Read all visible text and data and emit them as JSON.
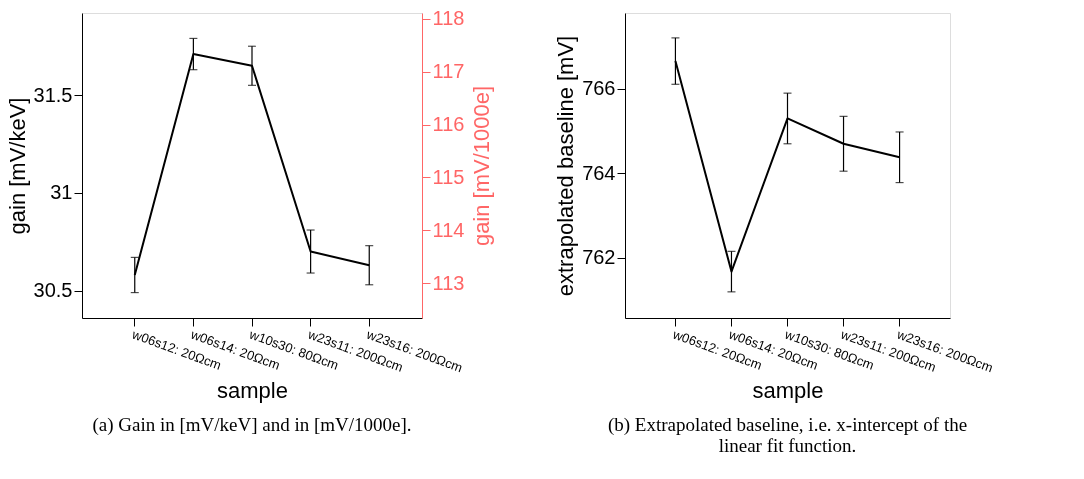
{
  "chart_data": [
    {
      "type": "line",
      "xlabel": "sample",
      "ylabel": "gain [mV/keV]",
      "y2label": "gain [mV/1000e]",
      "categories": [
        "w06s12: 20Ωcm",
        "w06s14: 20Ωcm",
        "w10s30: 80Ωcm",
        "w23s11: 200Ωcm",
        "w23s16: 200Ωcm"
      ],
      "series": [
        {
          "color": "#000000",
          "values": [
            30.58,
            31.71,
            31.65,
            30.7,
            30.63
          ],
          "errors": [
            0.09,
            0.08,
            0.1,
            0.11,
            0.1
          ]
        }
      ],
      "ylim": [
        30.36,
        31.92
      ],
      "yticks": [
        30.5,
        31,
        31.5
      ],
      "y2lim": [
        112.34,
        118.11
      ],
      "y2ticks": [
        113,
        114,
        115,
        116,
        117,
        118
      ],
      "grid": false,
      "marker": "none",
      "line_style": "solid",
      "annotations": [
        "(a) Gain in [mV/keV] and in [mV/1000e]."
      ]
    },
    {
      "type": "line",
      "xlabel": "sample",
      "ylabel": "extrapolated baseline [mV]",
      "categories": [
        "w06s12: 20Ωcm",
        "w06s14: 20Ωcm",
        "w10s30: 80Ωcm",
        "w23s11: 200Ωcm",
        "w23s16: 200Ωcm"
      ],
      "series": [
        {
          "color": "#000000",
          "values": [
            766.66,
            761.67,
            765.3,
            764.7,
            764.38
          ],
          "errors": [
            0.55,
            0.48,
            0.6,
            0.65,
            0.6
          ]
        }
      ],
      "ylim": [
        760.57,
        767.8
      ],
      "yticks": [
        762,
        764,
        766
      ],
      "grid": false,
      "marker": "none",
      "line_style": "solid",
      "annotations": [
        "(b) Extrapolated baseline, i.e. x-intercept of the linear fit function."
      ]
    }
  ]
}
